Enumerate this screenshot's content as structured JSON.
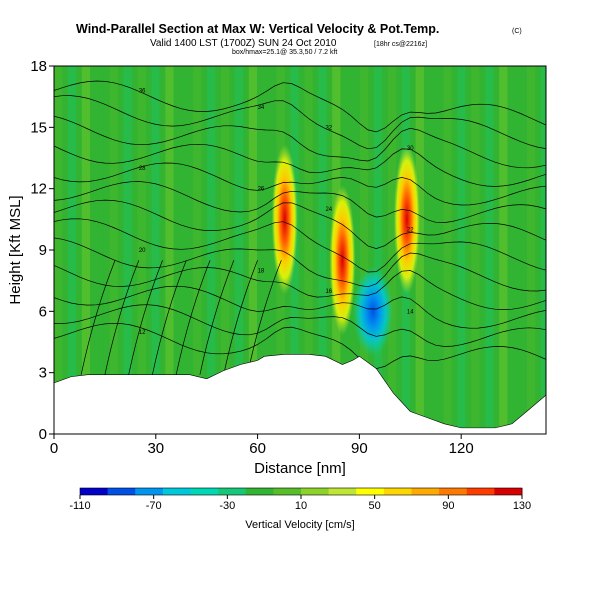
{
  "header": {
    "title": "Wind-Parallel Section at Max W: Vertical Velocity & Pot.Temp.",
    "title_unit": "(C)",
    "subtitle": "Valid 1400 LST (1700Z) SUN 24 Oct 2010",
    "subtitle_note": "[18hr cs@2216z]",
    "line3": "box/hmax=25.1@ 35.3,50 / 7.2 kft"
  },
  "chart_data": {
    "type": "heatmap",
    "xlabel": "Distance [nm]",
    "ylabel": "Height [Kft MSL]",
    "xlim": [
      0,
      145
    ],
    "ylim": [
      0,
      18
    ],
    "x_ticks": [
      "0",
      "30",
      "60",
      "90",
      "120"
    ],
    "y_ticks": [
      "0",
      "3",
      "6",
      "9",
      "12",
      "15",
      "18"
    ],
    "terrain": {
      "x": [
        0,
        5,
        10,
        20,
        30,
        40,
        45,
        50,
        55,
        60,
        62,
        68,
        75,
        80,
        85,
        88,
        90,
        95,
        100,
        105,
        110,
        115,
        120,
        125,
        130,
        135,
        140,
        145
      ],
      "height": [
        2.5,
        2.8,
        2.9,
        2.9,
        2.9,
        2.9,
        2.7,
        3.1,
        3.4,
        3.6,
        3.8,
        3.9,
        3.9,
        3.8,
        3.4,
        3.6,
        3.8,
        3.2,
        2.0,
        1.1,
        0.8,
        0.5,
        0.3,
        0.3,
        0.3,
        0.5,
        1.2,
        1.9
      ]
    },
    "updraft_cores": [
      {
        "x": 68,
        "z": 10.5,
        "w": 150
      },
      {
        "x": 85,
        "z": 8.5,
        "w": 110
      },
      {
        "x": 104,
        "z": 10.5,
        "w": 130
      }
    ],
    "downdraft_cores": [
      {
        "x": 94,
        "z": 6.0,
        "w": -90
      }
    ],
    "contour_labels": [
      "36",
      "34",
      "32",
      "30",
      "28",
      "26",
      "24",
      "22",
      "20",
      "18",
      "16",
      "14",
      "12"
    ],
    "colorbar": {
      "title": "Vertical Velocity [cm/s]",
      "ticks": [
        "-110",
        "-70",
        "-30",
        "10",
        "50",
        "90",
        "130"
      ],
      "colors": [
        "#0000c8",
        "#0050e6",
        "#0096f0",
        "#00c8dc",
        "#00d7b4",
        "#14c878",
        "#32b432",
        "#55be28",
        "#8cd228",
        "#bee632",
        "#ffff00",
        "#ffd700",
        "#ffaa00",
        "#ff7800",
        "#ff3c00",
        "#d70000"
      ]
    }
  }
}
